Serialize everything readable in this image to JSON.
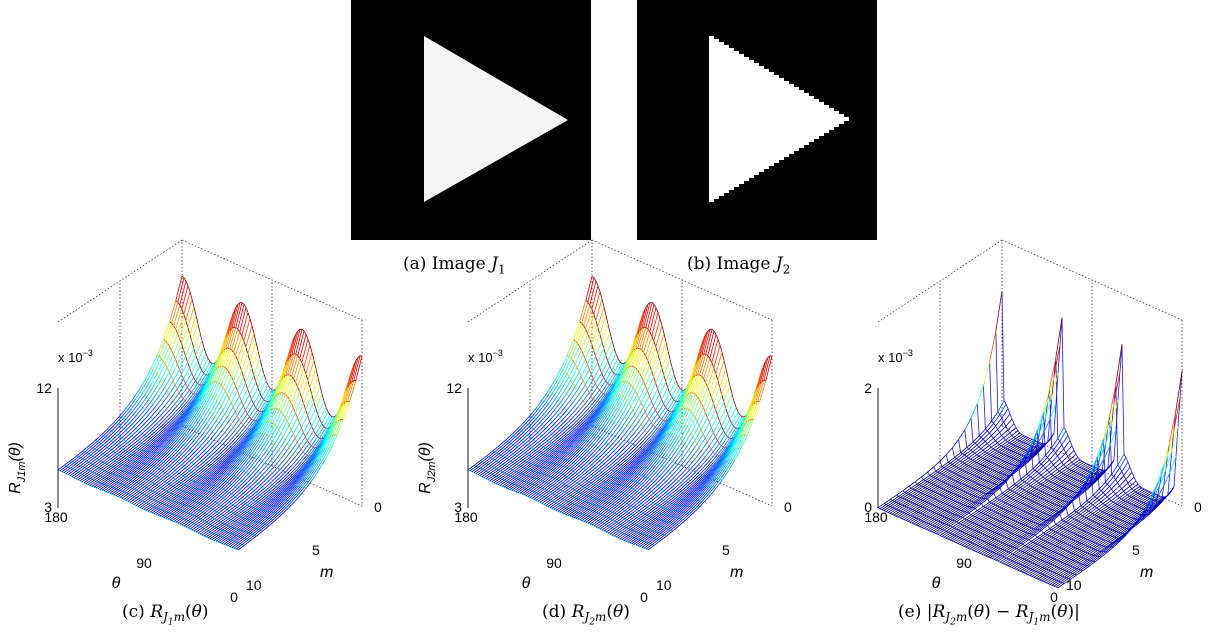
{
  "figure": {
    "panels_top": [
      {
        "id": "a",
        "caption_prefix": "(a) Image ",
        "caption_var": "J",
        "caption_sub": "1"
      },
      {
        "id": "b",
        "caption_prefix": "(b) Image ",
        "caption_var": "J",
        "caption_sub": "2"
      }
    ],
    "panels_bottom": [
      {
        "id": "c",
        "caption": "(c) R_{J_1 m}(θ)",
        "cap_prefix": "(c) ",
        "ylab_sub": "J1m",
        "exponent": "x 10",
        "exp_power": "−3",
        "zmax": "12",
        "zmin": "3",
        "theta_ticks": [
          "180",
          "90",
          "0"
        ],
        "m_ticks": [
          "0",
          "5",
          "10"
        ],
        "theta_label": "θ",
        "m_label": "m"
      },
      {
        "id": "d",
        "caption": "(d) R_{J_2 m}(θ)",
        "cap_prefix": "(d) ",
        "ylab_sub": "J2m",
        "exponent": "x 10",
        "exp_power": "−3",
        "zmax": "12",
        "zmin": "3",
        "theta_ticks": [
          "180",
          "90",
          "0"
        ],
        "m_ticks": [
          "0",
          "5",
          "10"
        ],
        "theta_label": "θ",
        "m_label": "m"
      },
      {
        "id": "e",
        "caption": "(e) |R_{J_2 m}(θ) − R_{J_1 m}(θ)|",
        "cap_prefix": "(e) ",
        "ylab_sub": "",
        "exponent": "x 10",
        "exp_power": "−3",
        "zmax": "2",
        "zmin": "0",
        "theta_ticks": [
          "180",
          "90",
          "0"
        ],
        "m_ticks": [
          "0",
          "5",
          "10"
        ],
        "theta_label": "θ",
        "m_label": "m"
      }
    ]
  },
  "colors": {
    "surface_start": "#0000c8",
    "surface_end": "#cc0000",
    "diff_base": "#1a1adc"
  }
}
